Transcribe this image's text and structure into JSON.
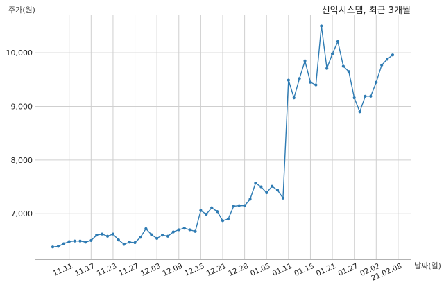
{
  "chart_data": {
    "type": "line",
    "title": "선익시스템, 최근 3개월",
    "ylabel": "주가(원)",
    "xlabel": "날짜(일)",
    "ylim": [
      6150,
      10700
    ],
    "yticks": [
      7000,
      8000,
      9000,
      10000
    ],
    "ytick_labels": [
      "7,000",
      "8,000",
      "9,000",
      "10,000"
    ],
    "x_tick_labels": [
      "11.11",
      "11.17",
      "11.23",
      "11.27",
      "12.03",
      "12.09",
      "12.15",
      "12.21",
      "12.28",
      "01.05",
      "01.11",
      "01.15",
      "01.21",
      "01.27",
      "02.02",
      "21.02.08"
    ],
    "x_tick_index": [
      3,
      7,
      11,
      15,
      19,
      23,
      27,
      31,
      35,
      39,
      43,
      47,
      51,
      55,
      59,
      63
    ],
    "grid": true,
    "color": "#2e7bb3",
    "series": [
      {
        "values": [
          6380,
          6390,
          6440,
          6480,
          6490,
          6490,
          6470,
          6500,
          6600,
          6620,
          6580,
          6620,
          6510,
          6430,
          6470,
          6460,
          6560,
          6720,
          6610,
          6540,
          6600,
          6580,
          6660,
          6700,
          6730,
          6700,
          6670,
          7060,
          6990,
          7110,
          7040,
          6870,
          6900,
          7140,
          7150,
          7150,
          7270,
          7570,
          7500,
          7390,
          7510,
          7440,
          7290,
          9490,
          9160,
          9520,
          9850,
          9450,
          9400,
          10500,
          9710,
          9980,
          10210,
          9750,
          9650,
          9160,
          8900,
          9190,
          9190,
          9450,
          9770,
          9880,
          9960
        ]
      }
    ]
  }
}
